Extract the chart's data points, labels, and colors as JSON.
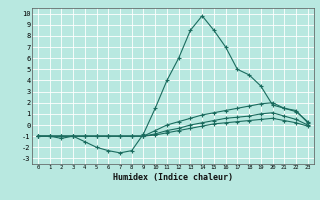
{
  "xlabel": "Humidex (Indice chaleur)",
  "bg_color": "#b8e8e0",
  "line_color": "#1a6b5e",
  "grid_color": "#ffffff",
  "xlim": [
    -0.5,
    23.5
  ],
  "ylim": [
    -3.5,
    10.5
  ],
  "xticks": [
    0,
    1,
    2,
    3,
    4,
    5,
    6,
    7,
    8,
    9,
    10,
    11,
    12,
    13,
    14,
    15,
    16,
    17,
    18,
    19,
    20,
    21,
    22,
    23
  ],
  "yticks": [
    -3,
    -2,
    -1,
    0,
    1,
    2,
    3,
    4,
    5,
    6,
    7,
    8,
    9,
    10
  ],
  "curves": [
    {
      "x": [
        0,
        1,
        2,
        3,
        4,
        5,
        6,
        7,
        8,
        9,
        10,
        11,
        12,
        13,
        14,
        15,
        16,
        17,
        18,
        19,
        20,
        21,
        22,
        23
      ],
      "y": [
        -1,
        -1,
        -1.2,
        -1,
        -1.5,
        -2,
        -2.3,
        -2.5,
        -2.3,
        -0.8,
        1.5,
        4,
        6,
        8.5,
        9.8,
        8.5,
        7,
        5,
        4.5,
        3.5,
        1.8,
        1.5,
        1.3,
        0.2
      ]
    },
    {
      "x": [
        0,
        1,
        2,
        3,
        4,
        5,
        6,
        7,
        8,
        9,
        10,
        11,
        12,
        13,
        14,
        15,
        16,
        17,
        18,
        19,
        20,
        21,
        22,
        23
      ],
      "y": [
        -1,
        -1,
        -1,
        -1,
        -1,
        -1,
        -1,
        -1,
        -1,
        -1,
        -0.5,
        0,
        0.3,
        0.6,
        0.9,
        1.1,
        1.3,
        1.5,
        1.7,
        1.9,
        2.0,
        1.5,
        1.2,
        0.3
      ]
    },
    {
      "x": [
        0,
        1,
        2,
        3,
        4,
        5,
        6,
        7,
        8,
        9,
        10,
        11,
        12,
        13,
        14,
        15,
        16,
        17,
        18,
        19,
        20,
        21,
        22,
        23
      ],
      "y": [
        -1,
        -1,
        -1,
        -1,
        -1,
        -1,
        -1,
        -1,
        -1,
        -1,
        -0.8,
        -0.5,
        -0.3,
        0,
        0.2,
        0.4,
        0.6,
        0.7,
        0.8,
        1.0,
        1.1,
        0.8,
        0.5,
        0.0
      ]
    },
    {
      "x": [
        0,
        1,
        2,
        3,
        4,
        5,
        6,
        7,
        8,
        9,
        10,
        11,
        12,
        13,
        14,
        15,
        16,
        17,
        18,
        19,
        20,
        21,
        22,
        23
      ],
      "y": [
        -1,
        -1,
        -1,
        -1,
        -1,
        -1,
        -1,
        -1,
        -1,
        -1,
        -0.9,
        -0.7,
        -0.5,
        -0.3,
        -0.1,
        0.1,
        0.2,
        0.3,
        0.4,
        0.5,
        0.6,
        0.4,
        0.2,
        -0.1
      ]
    }
  ]
}
